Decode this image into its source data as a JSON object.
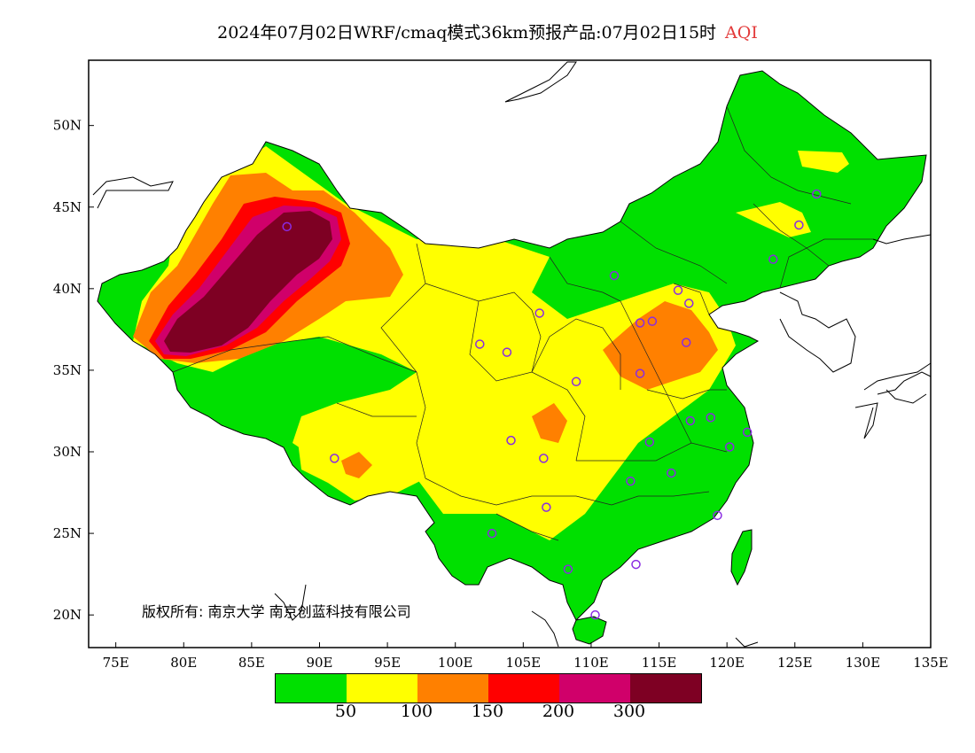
{
  "title": {
    "main": "2024年07月02日WRF/cmaq模式36km预报产品:07月02日15时",
    "variable": "AQI"
  },
  "map": {
    "lon_ticks": [
      "75E",
      "80E",
      "85E",
      "90E",
      "95E",
      "100E",
      "105E",
      "110E",
      "115E",
      "120E",
      "125E",
      "130E",
      "135E"
    ],
    "lat_ticks": [
      "20N",
      "25N",
      "30N",
      "35N",
      "40N",
      "45N",
      "50N"
    ],
    "lon_range": [
      73,
      135
    ],
    "lat_range": [
      18,
      54
    ],
    "copyright": "版权所有: 南京大学  南京创蓝科技有限公司",
    "station_marker_color": "#8a2be2",
    "stations": [
      [
        87.6,
        43.8
      ],
      [
        91.1,
        29.6
      ],
      [
        101.8,
        36.6
      ],
      [
        103.8,
        36.1
      ],
      [
        106.2,
        38.5
      ],
      [
        111.7,
        40.8
      ],
      [
        113.6,
        37.9
      ],
      [
        114.5,
        38.0
      ],
      [
        116.4,
        39.9
      ],
      [
        117.2,
        39.1
      ],
      [
        117.0,
        36.7
      ],
      [
        113.6,
        34.8
      ],
      [
        108.9,
        34.3
      ],
      [
        104.1,
        30.7
      ],
      [
        106.5,
        29.6
      ],
      [
        106.7,
        26.6
      ],
      [
        102.7,
        25.0
      ],
      [
        108.3,
        22.8
      ],
      [
        113.3,
        23.1
      ],
      [
        110.3,
        20.0
      ],
      [
        112.9,
        28.2
      ],
      [
        115.9,
        28.7
      ],
      [
        114.3,
        30.6
      ],
      [
        117.3,
        31.9
      ],
      [
        118.8,
        32.1
      ],
      [
        120.2,
        30.3
      ],
      [
        121.5,
        31.2
      ],
      [
        119.3,
        26.1
      ],
      [
        123.4,
        41.8
      ],
      [
        125.3,
        43.9
      ],
      [
        126.6,
        45.8
      ]
    ]
  },
  "legend": {
    "colors": [
      "#00e000",
      "#ffff00",
      "#ff8000",
      "#ff0000",
      "#d0006a",
      "#7e0023"
    ],
    "labels": [
      "50",
      "100",
      "150",
      "200",
      "300"
    ]
  }
}
